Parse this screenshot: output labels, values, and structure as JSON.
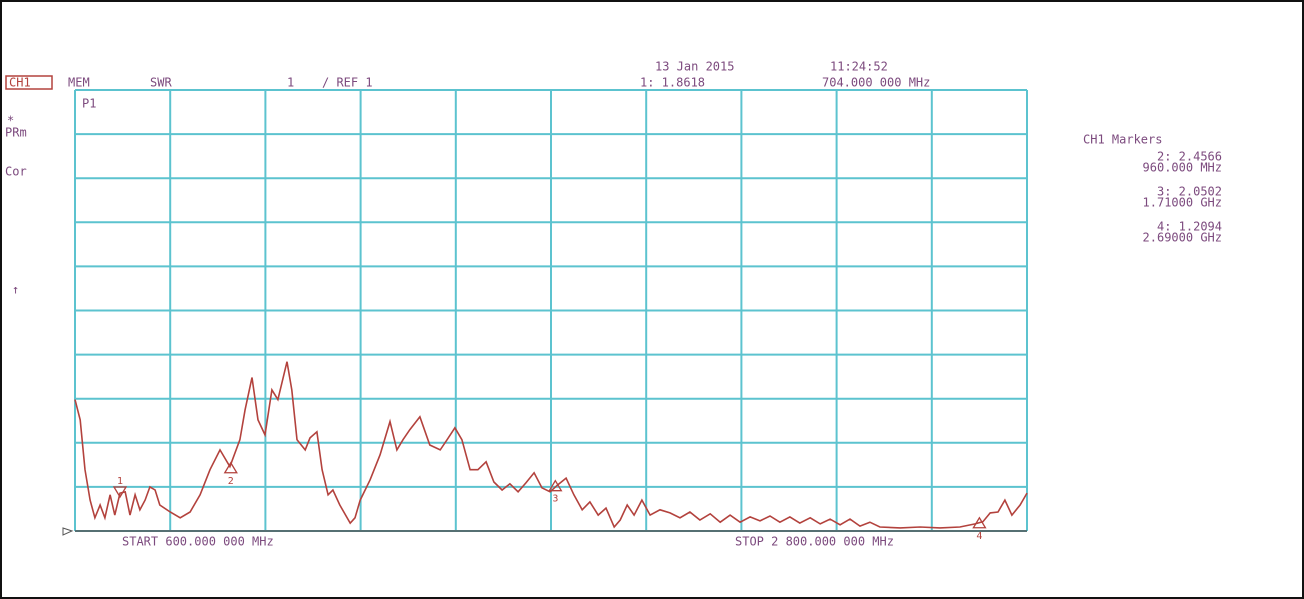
{
  "chart_data": {
    "type": "line",
    "date": "13 Jan 2015",
    "time": "11:24:52",
    "channel": "CH1",
    "header": [
      "MEM",
      "SWR",
      "1",
      "/ REF 1"
    ],
    "side_labels": [
      "P1",
      "*",
      "PRm",
      "Cor",
      "↑"
    ],
    "markers_title": "CH1 Markers",
    "start_label": "START 600.000 000 MHz",
    "stop_label": "STOP 2 800.000 000 MHz",
    "xlim": [
      600,
      2800
    ],
    "ylim": [
      1,
      11
    ],
    "xticks": [
      600,
      820,
      1040,
      1260,
      1480,
      1700,
      1920,
      2140,
      2360,
      2580,
      2800
    ],
    "yticks": [
      1,
      2,
      3,
      4,
      5,
      6,
      7,
      8,
      9,
      10,
      11
    ],
    "grid": true,
    "grid_color": "#5cc3cf",
    "color": "#b3423d",
    "x": [
      600,
      612,
      623,
      635,
      646,
      658,
      669,
      681,
      692,
      704,
      716,
      727,
      739,
      750,
      762,
      773,
      785,
      796,
      820,
      843,
      866,
      889,
      912,
      935,
      958,
      981,
      993,
      1009,
      1023,
      1039,
      1055,
      1069,
      1090,
      1101,
      1113,
      1132,
      1143,
      1159,
      1171,
      1185,
      1196,
      1212,
      1236,
      1247,
      1259,
      1282,
      1305,
      1328,
      1344,
      1358,
      1374,
      1397,
      1420,
      1444,
      1460,
      1478,
      1494,
      1513,
      1531,
      1550,
      1568,
      1587,
      1605,
      1624,
      1642,
      1661,
      1679,
      1698,
      1716,
      1735,
      1753,
      1772,
      1790,
      1809,
      1827,
      1846,
      1860,
      1876,
      1892,
      1910,
      1929,
      1952,
      1975,
      1998,
      2021,
      2044,
      2068,
      2091,
      2114,
      2137,
      2160,
      2183,
      2206,
      2229,
      2252,
      2275,
      2299,
      2322,
      2345,
      2368,
      2391,
      2414,
      2437,
      2460,
      2507,
      2553,
      2599,
      2645,
      2680,
      2698,
      2715,
      2733,
      2749,
      2765,
      2784,
      2800
    ],
    "values": [
      3.98,
      3.52,
      2.39,
      1.7,
      1.3,
      1.59,
      1.3,
      1.82,
      1.36,
      1.86,
      1.89,
      1.36,
      1.82,
      1.48,
      1.7,
      2.0,
      1.93,
      1.59,
      1.43,
      1.3,
      1.43,
      1.82,
      2.39,
      2.84,
      2.46,
      3.07,
      3.75,
      4.48,
      3.52,
      3.18,
      4.2,
      3.98,
      4.84,
      4.2,
      3.07,
      2.84,
      3.11,
      3.25,
      2.39,
      1.82,
      1.93,
      1.59,
      1.18,
      1.3,
      1.7,
      2.16,
      2.73,
      3.48,
      2.84,
      3.07,
      3.3,
      3.59,
      2.95,
      2.84,
      3.07,
      3.34,
      3.07,
      2.39,
      2.39,
      2.57,
      2.11,
      1.93,
      2.07,
      1.89,
      2.09,
      2.32,
      1.98,
      1.89,
      2.05,
      2.2,
      1.82,
      1.48,
      1.66,
      1.36,
      1.52,
      1.09,
      1.25,
      1.59,
      1.36,
      1.7,
      1.36,
      1.48,
      1.41,
      1.3,
      1.43,
      1.25,
      1.39,
      1.2,
      1.36,
      1.2,
      1.32,
      1.23,
      1.34,
      1.2,
      1.32,
      1.18,
      1.3,
      1.16,
      1.27,
      1.14,
      1.27,
      1.11,
      1.2,
      1.09,
      1.07,
      1.09,
      1.07,
      1.09,
      1.16,
      1.21,
      1.41,
      1.43,
      1.7,
      1.36,
      1.59,
      1.86
    ],
    "markers": [
      {
        "label": "1",
        "x": 704,
        "x_label": "704.000 000 MHz",
        "value": 1.8618,
        "value_label": "1: 1.8618"
      },
      {
        "label": "2",
        "x": 960,
        "x_label": "960.000 MHz",
        "value": 2.4566,
        "value_label": "2: 2.4566"
      },
      {
        "label": "3",
        "x": 1710,
        "x_label": "1.71000 GHz",
        "value": 2.0502,
        "value_label": "3: 2.0502"
      },
      {
        "label": "4",
        "x": 2690,
        "x_label": "2.69000 GHz",
        "value": 1.2094,
        "value_label": "4: 1.2094"
      }
    ]
  }
}
